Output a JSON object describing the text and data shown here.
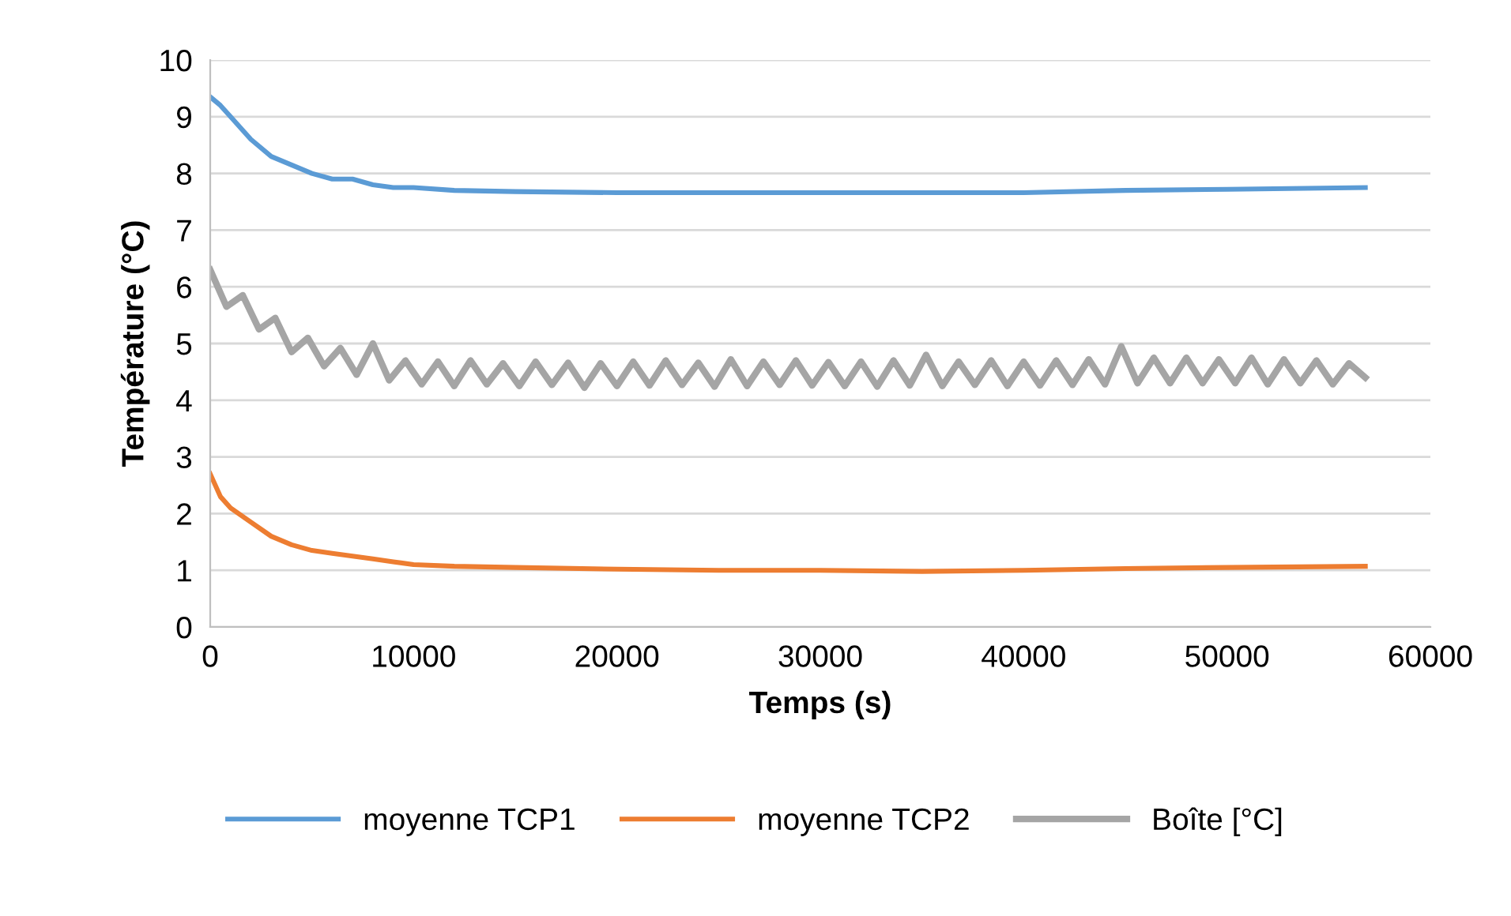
{
  "chart_data": {
    "type": "line",
    "xlabel": "Temps (s)",
    "ylabel": "Température (°C)",
    "xlim": [
      0,
      60000
    ],
    "xticks": [
      0,
      10000,
      20000,
      30000,
      40000,
      50000,
      60000
    ],
    "ylim": [
      0,
      10
    ],
    "yticks": [
      0,
      1,
      2,
      3,
      4,
      5,
      6,
      7,
      8,
      9,
      10
    ],
    "grid": "y",
    "legend": "bottom",
    "marker": "none",
    "line_style": "solid",
    "series": [
      {
        "name": "moyenne TCP1",
        "color": "#5b9bd5",
        "x": [
          0,
          500,
          1000,
          2000,
          3000,
          4000,
          5000,
          6000,
          7000,
          8000,
          9000,
          10000,
          12000,
          15000,
          20000,
          25000,
          30000,
          35000,
          40000,
          45000,
          50000,
          56800
        ],
        "values": [
          9.35,
          9.2,
          9.0,
          8.6,
          8.3,
          8.15,
          8.0,
          7.9,
          7.9,
          7.8,
          7.75,
          7.75,
          7.7,
          7.68,
          7.66,
          7.66,
          7.66,
          7.66,
          7.66,
          7.7,
          7.72,
          7.75
        ]
      },
      {
        "name": "moyenne TCP2",
        "color": "#ed7d31",
        "x": [
          0,
          500,
          1000,
          2000,
          3000,
          4000,
          5000,
          6000,
          7000,
          8000,
          9000,
          10000,
          12000,
          15000,
          20000,
          25000,
          30000,
          35000,
          40000,
          45000,
          50000,
          56800
        ],
        "values": [
          2.7,
          2.3,
          2.1,
          1.85,
          1.6,
          1.45,
          1.35,
          1.3,
          1.25,
          1.2,
          1.15,
          1.1,
          1.07,
          1.05,
          1.02,
          1.0,
          1.0,
          0.98,
          1.0,
          1.03,
          1.05,
          1.07
        ]
      },
      {
        "name": "Boîte [°C]",
        "color": "#a5a5a5",
        "x": [
          0,
          800,
          1600,
          2400,
          3200,
          4000,
          4800,
          5600,
          6400,
          7200,
          8000,
          8800,
          9600,
          10400,
          11200,
          12000,
          12800,
          13600,
          14400,
          15200,
          16000,
          16800,
          17600,
          18400,
          19200,
          20000,
          20800,
          21600,
          22400,
          23200,
          24000,
          24800,
          25600,
          26400,
          27200,
          28000,
          28800,
          29600,
          30400,
          31200,
          32000,
          32800,
          33600,
          34400,
          35200,
          36000,
          36800,
          37600,
          38400,
          39200,
          40000,
          40800,
          41600,
          42400,
          43200,
          44000,
          44800,
          45600,
          46400,
          47200,
          48000,
          48800,
          49600,
          50400,
          51200,
          52000,
          52800,
          53600,
          54400,
          55200,
          56000,
          56800
        ],
        "values": [
          6.3,
          5.65,
          5.85,
          5.25,
          5.45,
          4.85,
          5.1,
          4.6,
          4.92,
          4.45,
          5.0,
          4.35,
          4.7,
          4.28,
          4.68,
          4.25,
          4.7,
          4.28,
          4.65,
          4.25,
          4.68,
          4.27,
          4.66,
          4.22,
          4.65,
          4.25,
          4.68,
          4.26,
          4.7,
          4.27,
          4.66,
          4.24,
          4.72,
          4.25,
          4.68,
          4.27,
          4.7,
          4.26,
          4.67,
          4.25,
          4.68,
          4.24,
          4.7,
          4.26,
          4.8,
          4.25,
          4.68,
          4.27,
          4.7,
          4.25,
          4.68,
          4.26,
          4.7,
          4.27,
          4.72,
          4.28,
          4.95,
          4.3,
          4.75,
          4.3,
          4.75,
          4.3,
          4.72,
          4.3,
          4.75,
          4.28,
          4.72,
          4.3,
          4.7,
          4.28,
          4.65,
          4.4
        ]
      }
    ]
  }
}
